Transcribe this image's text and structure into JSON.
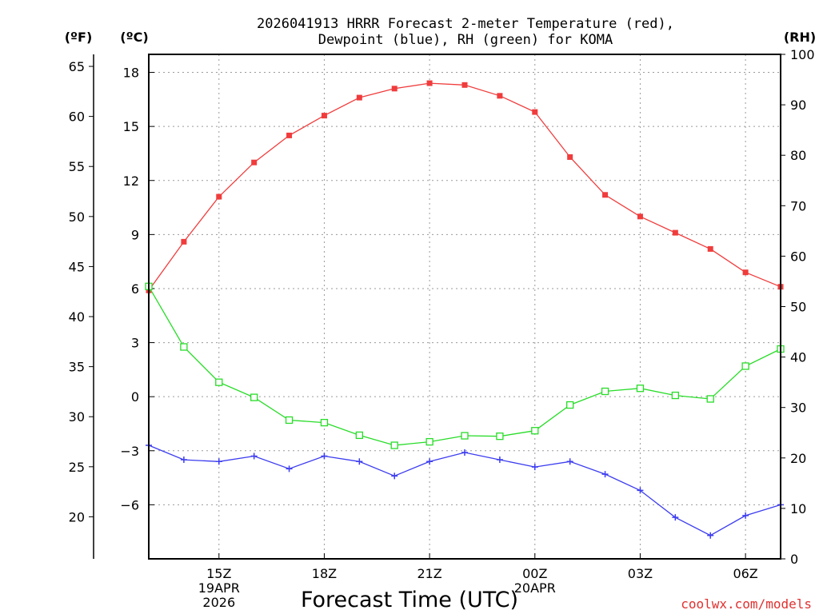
{
  "title_line1": "2026041913 HRRR Forecast 2-meter Temperature (red),",
  "title_line2": "Dewpoint (blue), RH (green) for KOMA",
  "unit_f": "(ºF)",
  "unit_c": "(ºC)",
  "unit_rh": "(RH)",
  "xlabel": "Forecast Time (UTC)",
  "credit": "coolwx.com/models",
  "colors": {
    "temperature": "#f03c3c",
    "dewpoint": "#3c3cf0",
    "rh": "#28dc28",
    "frame": "#000000"
  },
  "chart_data": {
    "type": "line",
    "title": "2026041913 HRRR Forecast 2-meter Temperature (red), Dewpoint (blue), RH (green) for KOMA",
    "xlabel": "Forecast Time (UTC)",
    "x_hours_utc": [
      13,
      14,
      15,
      16,
      17,
      18,
      19,
      20,
      21,
      22,
      23,
      24,
      25,
      26,
      27,
      28,
      29,
      30,
      31
    ],
    "xlim": [
      13,
      31
    ],
    "x_ticks": [
      {
        "hour": 15,
        "label": "15Z",
        "date": "19APR",
        "year": "2026"
      },
      {
        "hour": 18,
        "label": "18Z"
      },
      {
        "hour": 21,
        "label": "21Z"
      },
      {
        "hour": 24,
        "label": "00Z",
        "date": "20APR"
      },
      {
        "hour": 27,
        "label": "03Z"
      },
      {
        "hour": 30,
        "label": "06Z"
      }
    ],
    "left_axis_c": {
      "label": "(ºC)",
      "ylim": [
        -9,
        19
      ],
      "ticks": [
        -6,
        -3,
        0,
        3,
        6,
        9,
        12,
        15,
        18
      ]
    },
    "left_axis_f": {
      "label": "(ºF)",
      "ticks": [
        20,
        25,
        30,
        35,
        40,
        45,
        50,
        55,
        60,
        65
      ]
    },
    "right_axis_rh": {
      "label": "(RH)",
      "ylim": [
        0,
        100
      ],
      "ticks": [
        0,
        10,
        20,
        30,
        40,
        50,
        60,
        70,
        80,
        90,
        100
      ]
    },
    "series": [
      {
        "name": "Temperature",
        "axis": "c",
        "color": "#f03c3c",
        "marker": "square",
        "values": [
          5.9,
          8.6,
          11.1,
          13.0,
          14.5,
          15.6,
          16.6,
          17.1,
          17.4,
          17.3,
          16.7,
          15.8,
          13.3,
          11.2,
          10.0,
          9.1,
          8.2,
          6.9,
          6.1
        ]
      },
      {
        "name": "Dewpoint",
        "axis": "c",
        "color": "#3c3cf0",
        "marker": "plus",
        "values": [
          -2.7,
          -3.5,
          -3.6,
          -3.3,
          -4.0,
          -3.3,
          -3.6,
          -4.4,
          -3.6,
          -3.1,
          -3.5,
          -3.9,
          -3.6,
          -4.3,
          -5.2,
          -6.7,
          -7.7,
          -6.6,
          -6.0
        ]
      },
      {
        "name": "RH",
        "axis": "rh",
        "color": "#28dc28",
        "marker": "open-square",
        "values": [
          54.0,
          42.0,
          35.0,
          32.0,
          27.5,
          27.0,
          24.5,
          22.5,
          23.2,
          24.4,
          24.3,
          25.4,
          30.5,
          33.2,
          33.8,
          32.4,
          31.7,
          38.2,
          41.6
        ]
      }
    ]
  }
}
